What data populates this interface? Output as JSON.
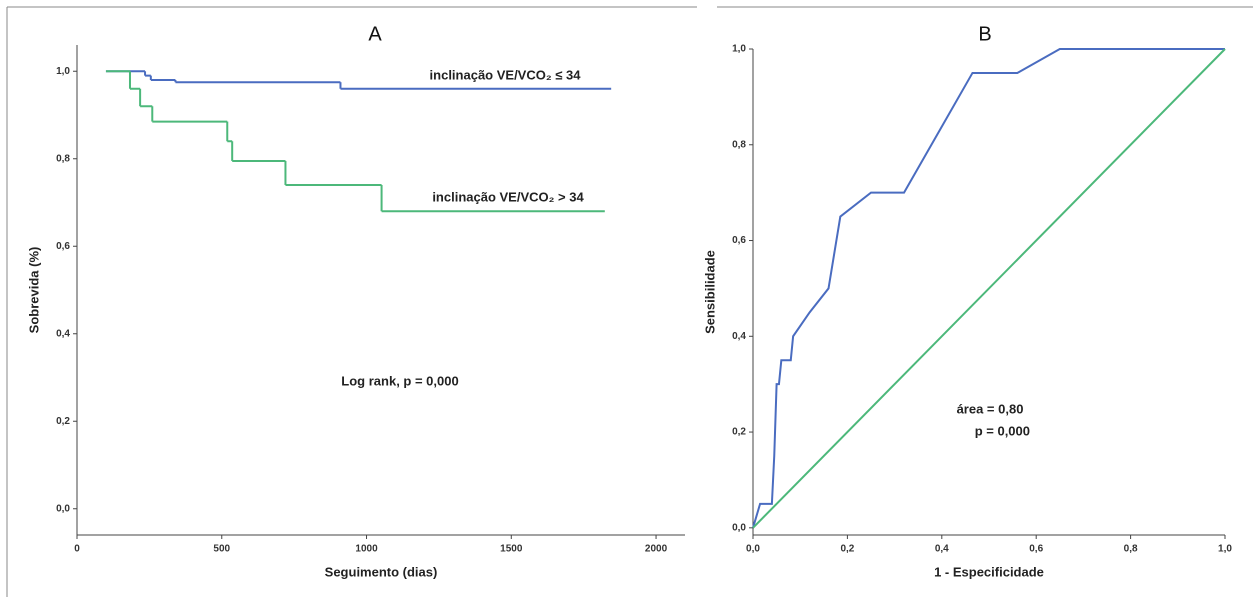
{
  "chart_data": [
    {
      "type": "line",
      "drawstyle": "steps-post",
      "title": "A",
      "xlabel": "Seguimento (dias)",
      "ylabel": "Sobrevida (%)",
      "xlim": [
        0,
        2100
      ],
      "ylim": [
        -0.06,
        1.06
      ],
      "xticks": [
        0,
        500,
        1000,
        1500,
        2000
      ],
      "yticks": [
        {
          "value": 0,
          "label": "0,0"
        },
        {
          "value": 0.2,
          "label": "0,2"
        },
        {
          "value": 0.4,
          "label": "0,4"
        },
        {
          "value": 0.6,
          "label": "0,6"
        },
        {
          "value": 0.8,
          "label": "0,8"
        },
        {
          "value": 1.0,
          "label": "1,0"
        }
      ],
      "series": [
        {
          "name": "inclinação VE/VCO₂ ≤ 34",
          "color": "#4a6cc0",
          "x": [
            100,
            235,
            255,
            340,
            910,
            1845
          ],
          "values": [
            1.0,
            0.99,
            0.98,
            0.975,
            0.96,
            0.96
          ]
        },
        {
          "name": "inclinação VE/VCO₂ > 34",
          "color": "#4cb87a",
          "x": [
            100,
            183,
            218,
            260,
            519,
            536,
            720,
            1052,
            1823
          ],
          "values": [
            1.0,
            0.96,
            0.92,
            0.885,
            0.84,
            0.795,
            0.74,
            0.68,
            0.68
          ]
        }
      ],
      "annotations": [
        "Log rank, p = 0,000"
      ]
    },
    {
      "type": "line",
      "title": "B",
      "xlabel": "1 - Especificidade",
      "ylabel": "Sensibilidade",
      "xlim": [
        0,
        1.0
      ],
      "ylim": [
        -0.015,
        1.0
      ],
      "xticks": [
        {
          "value": 0,
          "label": "0,0"
        },
        {
          "value": 0.2,
          "label": "0,2"
        },
        {
          "value": 0.4,
          "label": "0,4"
        },
        {
          "value": 0.6,
          "label": "0,6"
        },
        {
          "value": 0.8,
          "label": "0,8"
        },
        {
          "value": 1.0,
          "label": "1,0"
        }
      ],
      "yticks": [
        {
          "value": 0,
          "label": "0,0"
        },
        {
          "value": 0.2,
          "label": "0,2"
        },
        {
          "value": 0.4,
          "label": "0,4"
        },
        {
          "value": 0.6,
          "label": "0,6"
        },
        {
          "value": 0.8,
          "label": "0,8"
        },
        {
          "value": 1.0,
          "label": "1,0"
        }
      ],
      "series": [
        {
          "color": "#4a6cc0",
          "x": [
            0,
            0.015,
            0.04,
            0.045,
            0.05,
            0.055,
            0.06,
            0.08,
            0.085,
            0.12,
            0.16,
            0.185,
            0.25,
            0.32,
            0.465,
            0.56,
            0.65,
            1.0
          ],
          "values": [
            0,
            0.05,
            0.05,
            0.15,
            0.3,
            0.3,
            0.35,
            0.35,
            0.4,
            0.45,
            0.5,
            0.65,
            0.7,
            0.7,
            0.95,
            0.95,
            1.0,
            1.0
          ]
        },
        {
          "color": "#4cb87a",
          "x": [
            0,
            1.0
          ],
          "values": [
            0,
            1.0
          ]
        }
      ],
      "annotations": [
        "área = 0,80",
        "p = 0,000"
      ]
    }
  ]
}
